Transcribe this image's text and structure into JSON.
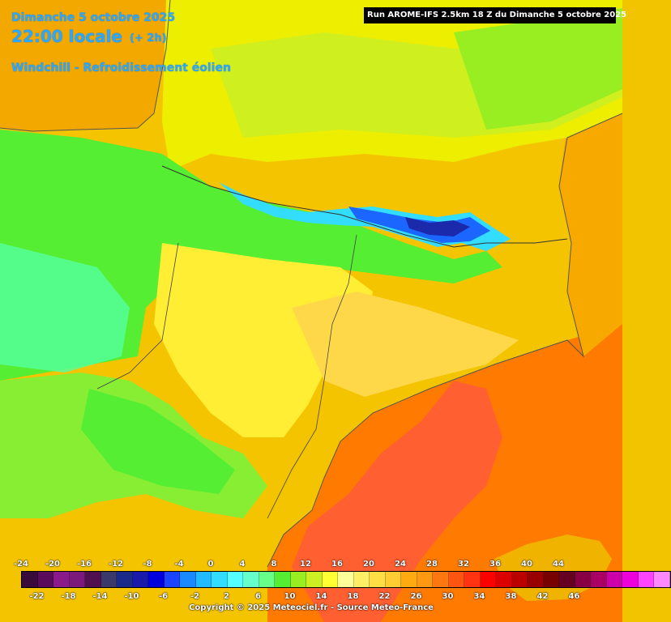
{
  "header": {
    "date": "Dimanche 5 octobre 2025",
    "time": "22:00 locale",
    "offset": "(+ 2h)",
    "parameter": "Windchill - Refroidissement éolien"
  },
  "run_info": "Run AROME-IFS 2.5km 18 Z du Dimanche 5 octobre 2025",
  "legend": {
    "top_ticks": [
      "-24",
      "-20",
      "-16",
      "-12",
      "-8",
      "-4",
      "0",
      "4",
      "8",
      "12",
      "16",
      "20",
      "24",
      "28",
      "32",
      "36",
      "40",
      "44"
    ],
    "bottom_ticks": [
      "-22",
      "-18",
      "-14",
      "-10",
      "-6",
      "-2",
      "2",
      "6",
      "10",
      "14",
      "18",
      "22",
      "26",
      "30",
      "34",
      "38",
      "42",
      "46"
    ],
    "colors": [
      "#3a0a3a",
      "#5a0a5a",
      "#8a1a8a",
      "#7a1a7a",
      "#501050",
      "#3a3a6a",
      "#1a2a8a",
      "#1a1aaa",
      "#0000dd",
      "#1a44ff",
      "#1a88ff",
      "#22bbff",
      "#33ddff",
      "#55ffff",
      "#66ffcc",
      "#66ff88",
      "#55ee33",
      "#99ee22",
      "#ccee22",
      "#ffff33",
      "#ffff99",
      "#ffee66",
      "#ffdd44",
      "#ffcc33",
      "#ffaa11",
      "#ff9911",
      "#ff7711",
      "#ff5511",
      "#ff3311",
      "#ff0000",
      "#dd0000",
      "#bb0000",
      "#990000",
      "#770000",
      "#660022",
      "#880044",
      "#aa0066",
      "#cc00aa",
      "#ee00dd",
      "#ff44ff",
      "#ff88ff"
    ]
  },
  "copyright": "Copyright © 2025 Meteociel.fr - Source Meteo-France"
}
